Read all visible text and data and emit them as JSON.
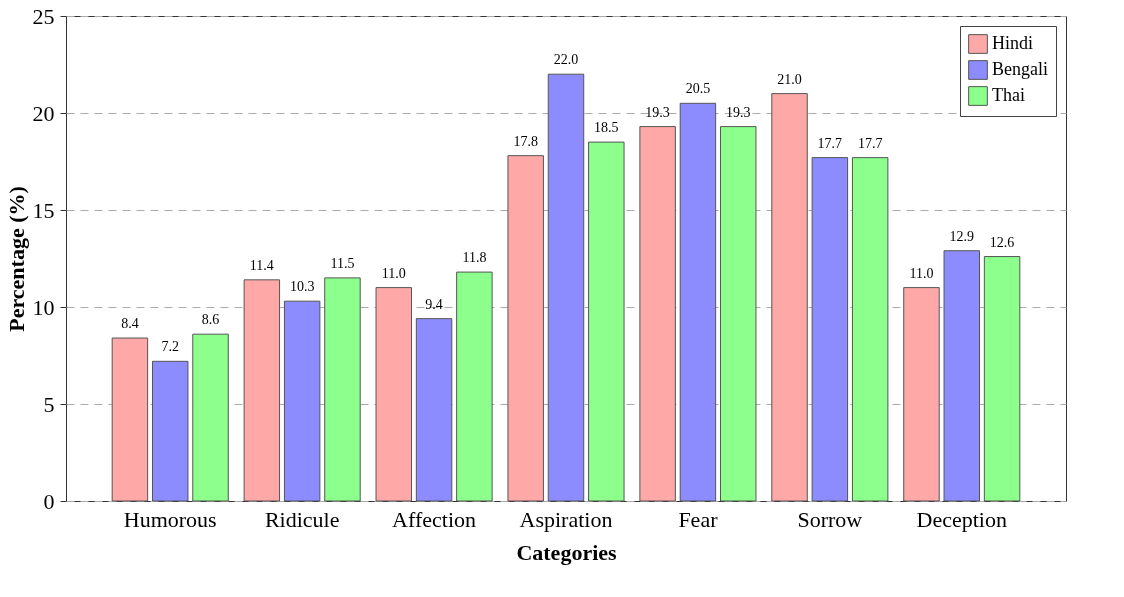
{
  "chart_data": {
    "type": "bar",
    "xlabel": "Categories",
    "ylabel": "Percentage (%)",
    "categories": [
      "Humorous",
      "Ridicule",
      "Affection",
      "Aspiration",
      "Fear",
      "Sorrow",
      "Deception"
    ],
    "series": [
      {
        "name": "Hindi",
        "color": "#ffa8a8",
        "values": [
          8.4,
          11.4,
          11.0,
          17.8,
          19.3,
          21.0,
          11.0
        ],
        "value_labels": [
          "8.4",
          "11.4",
          "11.0",
          "17.8",
          "19.3",
          "21.0",
          "11.0"
        ]
      },
      {
        "name": "Bengali",
        "color": "#8c8cff",
        "values": [
          7.2,
          10.3,
          9.4,
          22.0,
          20.5,
          17.7,
          12.9
        ],
        "value_labels": [
          "7.2",
          "10.3",
          "9.4",
          "22.0",
          "20.5",
          "17.7",
          "12.9"
        ]
      },
      {
        "name": "Thai",
        "color": "#8cff8c",
        "values": [
          8.6,
          11.5,
          11.8,
          18.5,
          19.3,
          17.7,
          12.6
        ],
        "value_labels": [
          "8.6",
          "11.5",
          "11.8",
          "18.5",
          "19.3",
          "17.7",
          "12.6"
        ]
      }
    ],
    "ylim": [
      0,
      25
    ],
    "yticks": [
      0,
      5,
      10,
      15,
      20,
      25
    ],
    "grid": "y",
    "legend": "top right"
  }
}
